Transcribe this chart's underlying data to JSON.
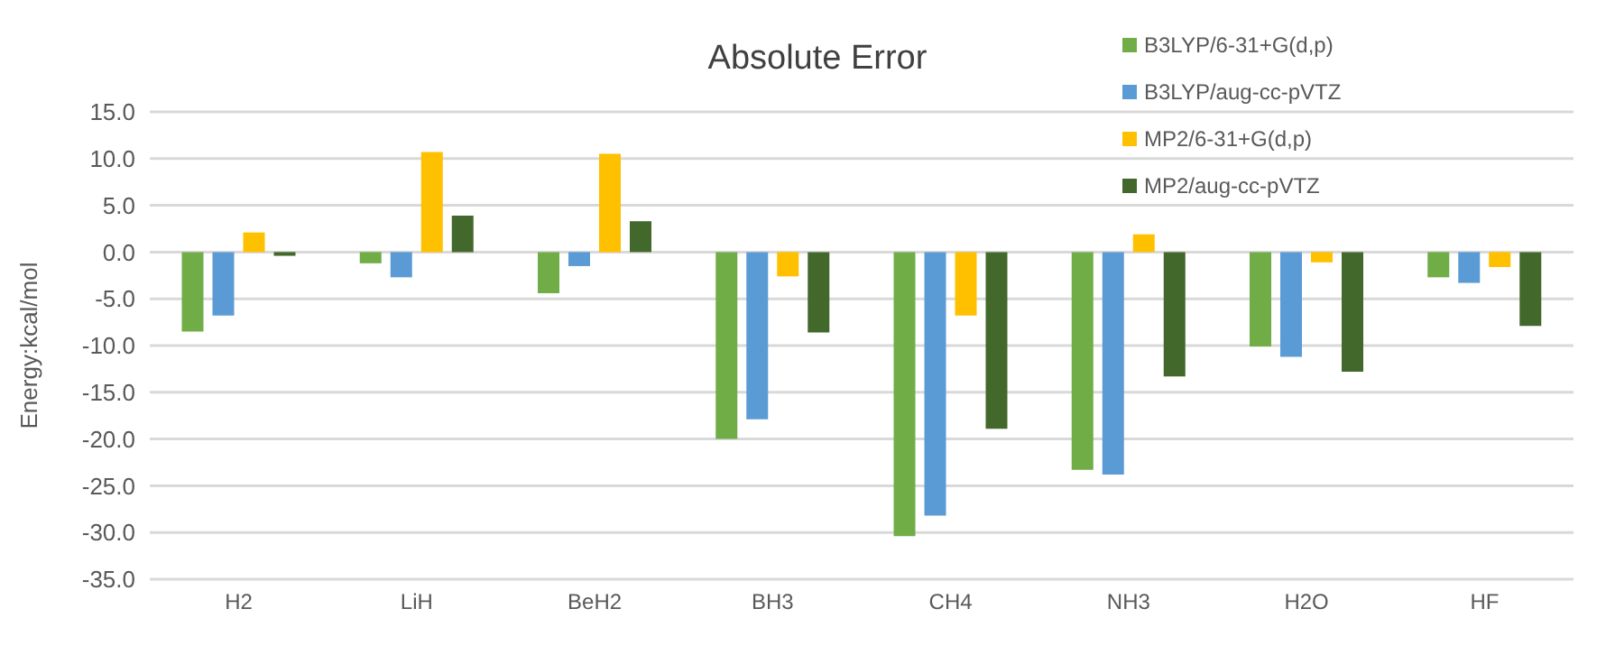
{
  "chart_data": {
    "type": "bar",
    "title": "Absolute Error",
    "ylabel": "Energy:kcal/mol",
    "categories": [
      "H2",
      "LiH",
      "BeH2",
      "BH3",
      "CH4",
      "NH3",
      "H2O",
      "HF"
    ],
    "series": [
      {
        "name": "B3LYP/6-31+G(d,p)",
        "color": "#70ad47",
        "values": [
          -8.5,
          -1.2,
          -4.4,
          -20.0,
          -30.4,
          -23.3,
          -10.1,
          -2.7
        ]
      },
      {
        "name": "B3LYP/aug-cc-pVTZ",
        "color": "#5b9bd5",
        "values": [
          -6.8,
          -2.7,
          -1.5,
          -17.9,
          -28.2,
          -23.8,
          -11.2,
          -3.3
        ]
      },
      {
        "name": "MP2/6-31+G(d,p)",
        "color": "#ffc000",
        "values": [
          2.1,
          10.7,
          10.5,
          -2.6,
          -6.8,
          1.9,
          -1.1,
          -1.6
        ]
      },
      {
        "name": "MP2/aug-cc-pVTZ",
        "color": "#43682b",
        "values": [
          -0.4,
          3.9,
          3.3,
          -8.6,
          -18.9,
          -13.3,
          -12.8,
          -7.9
        ]
      }
    ],
    "ylim": [
      -35,
      15
    ],
    "yticks": [
      {
        "value": -35,
        "label": "-35.0"
      },
      {
        "value": -30,
        "label": "-30.0"
      },
      {
        "value": -25,
        "label": "-25.0"
      },
      {
        "value": -20,
        "label": "-20.0"
      },
      {
        "value": -15,
        "label": "-15.0"
      },
      {
        "value": -10,
        "label": "-10.0"
      },
      {
        "value": -5,
        "label": "-5.0"
      },
      {
        "value": 0,
        "label": "0.0"
      },
      {
        "value": 5,
        "label": "5.0"
      },
      {
        "value": 10,
        "label": "10.0"
      },
      {
        "value": 15,
        "label": "15.0"
      }
    ],
    "grid": "y",
    "legend": "top right"
  }
}
